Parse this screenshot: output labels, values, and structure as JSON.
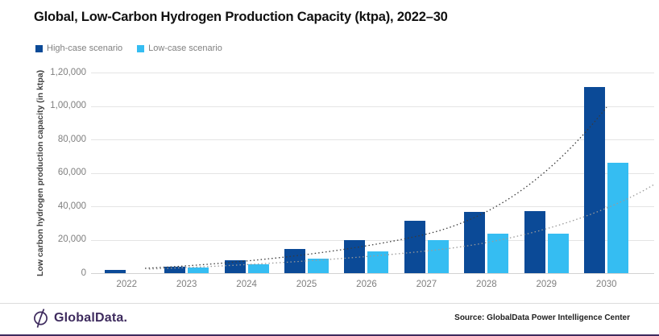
{
  "title": "Global, Low-Carbon Hydrogen Production Capacity (ktpa), 2022–30",
  "legend": [
    {
      "label": "High-case scenario",
      "color": "#0b4a97"
    },
    {
      "label": "Low-case scenario",
      "color": "#35bdf2"
    }
  ],
  "y_axis": {
    "title": "Low carbon hydrogen production capacity (in ktpa)",
    "ticks": [
      "1,20,000",
      "1,00,000",
      "80,000",
      "60,000",
      "40,000",
      "20,000",
      "0"
    ]
  },
  "chart_data": {
    "type": "bar",
    "title": "Global, Low-Carbon Hydrogen Production Capacity (ktpa), 2022–30",
    "categories": [
      "2022",
      "2023",
      "2024",
      "2025",
      "2026",
      "2027",
      "2028",
      "2029",
      "2030"
    ],
    "series": [
      {
        "name": "High-case scenario",
        "key": "high-case",
        "color": "#0b4a97",
        "values": [
          2000,
          4000,
          7800,
          14300,
          20000,
          31500,
          36500,
          37000,
          111500
        ]
      },
      {
        "name": "Low-case scenario",
        "key": "low-case",
        "color": "#35bdf2",
        "values": [
          0,
          3300,
          5500,
          8600,
          13000,
          20000,
          23500,
          23500,
          66000
        ]
      }
    ],
    "ylabel": "Low carbon hydrogen production capacity (in ktpa)",
    "xlabel": "",
    "ylim": [
      0,
      120000
    ],
    "grid": "horizontal",
    "legend_position": "top-left",
    "annotations": [
      {
        "type": "trendline",
        "series": "High-case scenario",
        "style": "dotted exponential",
        "end_value_approx": 99000
      },
      {
        "type": "trendline",
        "series": "Low-case scenario",
        "style": "dotted exponential",
        "end_value_approx": 52000
      }
    ]
  },
  "footer": {
    "logo_text": "GlobalData.",
    "source": "Source: GlobalData Power Intelligence Center"
  }
}
